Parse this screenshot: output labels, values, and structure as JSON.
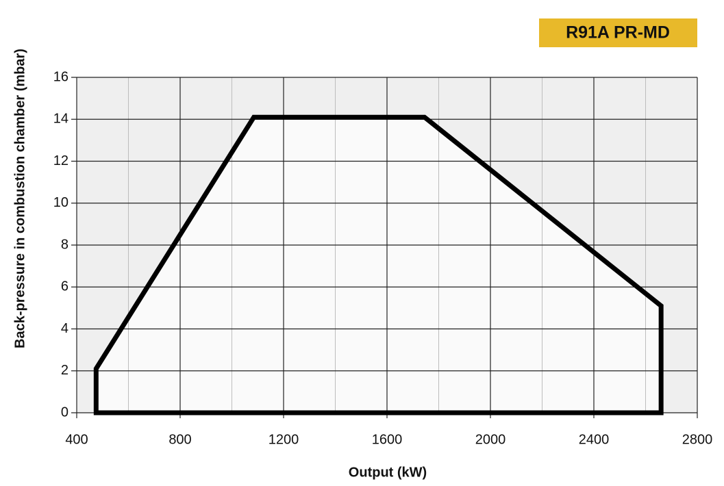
{
  "chart_data": {
    "type": "polygon",
    "title": "R91A PR-MD",
    "xlabel": "Output (kW)",
    "ylabel": "Back-pressure in combustion chamber (mbar)",
    "x": [
      475,
      475,
      1085,
      1745,
      2660,
      2660
    ],
    "values": [
      0,
      2.1,
      14.1,
      14.1,
      5.1,
      0
    ],
    "color": "#000000",
    "fill": "#fafafa",
    "background": "#efefef",
    "badge_color": "#e8b92a",
    "xlim": [
      400,
      2800
    ],
    "ylim": [
      0,
      16
    ],
    "xticks": [
      400,
      800,
      1200,
      1600,
      2000,
      2400,
      2800
    ],
    "xminorticks": [
      600,
      1000,
      1400,
      1800,
      2200,
      2600
    ],
    "yticks": [
      0,
      2,
      4,
      6,
      8,
      10,
      12,
      14,
      16
    ],
    "grid": true
  }
}
